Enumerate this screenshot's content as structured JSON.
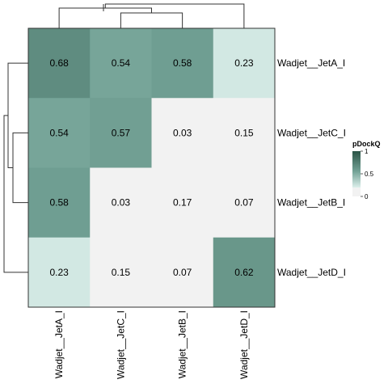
{
  "chart_data": {
    "type": "heatmap",
    "title": "",
    "xlabel": "",
    "ylabel": "",
    "rows": [
      "Wadjet__JetA_I",
      "Wadjet__JetC_I",
      "Wadjet__JetB_I",
      "Wadjet__JetD_I"
    ],
    "columns": [
      "Wadjet__JetA_I",
      "Wadjet__JetC_I",
      "Wadjet__JetB_I",
      "Wadjet__JetD_I"
    ],
    "values": [
      [
        0.68,
        0.54,
        0.58,
        0.23
      ],
      [
        0.54,
        0.57,
        0.03,
        0.15
      ],
      [
        0.58,
        0.03,
        0.17,
        0.07
      ],
      [
        0.23,
        0.15,
        0.07,
        0.62
      ]
    ],
    "cell_labels": [
      [
        "0.68",
        "0.54",
        "0.58",
        "0.23"
      ],
      [
        "0.54",
        "0.57",
        "0.03",
        "0.15"
      ],
      [
        "0.58",
        "0.03",
        "0.17",
        "0.07"
      ],
      [
        "0.23",
        "0.15",
        "0.07",
        "0.62"
      ]
    ],
    "legend": {
      "title": "pDockQ",
      "placement": "right",
      "range": [
        0,
        1
      ],
      "ticks": [
        "0",
        "0.5",
        "1"
      ],
      "color_low": "#f2f2f2",
      "color_high": "#2b5446",
      "threshold": 0.2
    },
    "row_dendrogram": true,
    "column_dendrogram": true
  }
}
